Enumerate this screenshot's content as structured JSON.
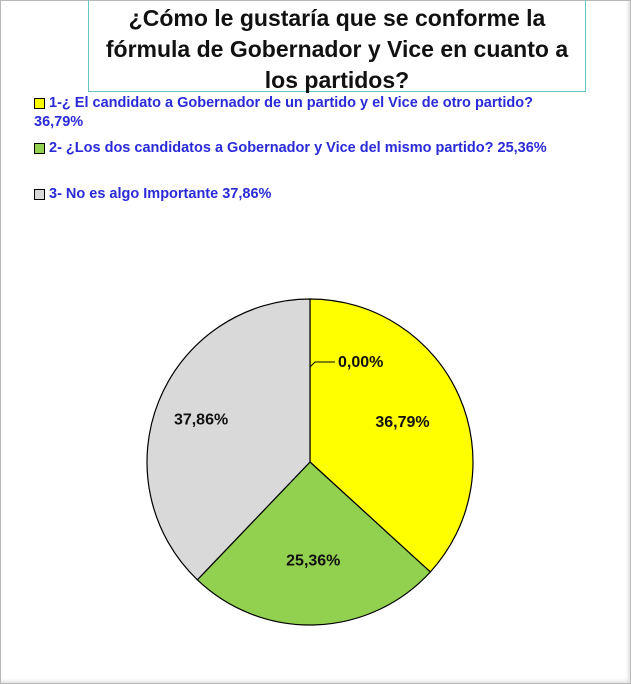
{
  "title": "¿Cómo le gustaría que se conforme la fórmula de Gobernador y Vice en cuanto a los partidos?",
  "legend": [
    {
      "line1": "1-¿ El candidato a Gobernador de un partido y el Vice de otro partido?",
      "line2": "36,79%",
      "color": "#ffff00"
    },
    {
      "line1": "2- ¿Los dos candidatos a Gobernador y Vice del mismo partido? 25,36%",
      "line2": "",
      "color": "#92d050"
    },
    {
      "line1": "3- No es algo Importante 37,86%",
      "line2": "",
      "color": "#d9d9d9"
    }
  ],
  "chart_data": {
    "type": "pie",
    "title": "¿Cómo le gustaría que se conforme la fórmula de Gobernador y Vice en cuanto a los partidos?",
    "categories": [
      "1-¿ El candidato a Gobernador de un partido y el Vice de otro partido?",
      "2- ¿Los dos candidatos a Gobernador y Vice del mismo partido?",
      "3- No es algo Importante",
      ""
    ],
    "values": [
      36.79,
      25.36,
      37.86,
      0.0
    ],
    "labels": [
      "36,79%",
      "25,36%",
      "37,86%",
      "0,00%"
    ],
    "colors": [
      "#ffff00",
      "#92d050",
      "#d9d9d9",
      "#ffffff"
    ],
    "legend_position": "top"
  }
}
